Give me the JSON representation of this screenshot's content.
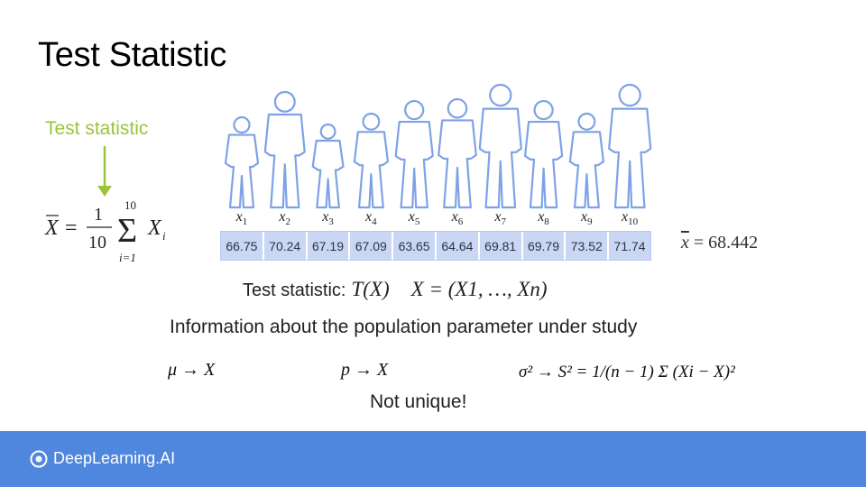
{
  "slide": {
    "title": "Test Statistic",
    "test_statistic_label": "Test statistic",
    "formula_left": {
      "lhs": "X",
      "numerator": "1",
      "denominator": "10",
      "sum_upper": "10",
      "sum_lower": "i=1",
      "term": "X",
      "term_sub": "i"
    },
    "samples": {
      "labels": [
        "x1",
        "x2",
        "x3",
        "x4",
        "x5",
        "x6",
        "x7",
        "x8",
        "x9",
        "x10"
      ],
      "label_subs": [
        "1",
        "2",
        "3",
        "4",
        "5",
        "6",
        "7",
        "8",
        "9",
        "10"
      ],
      "values": [
        "66.75",
        "70.24",
        "67.19",
        "67.09",
        "63.65",
        "64.64",
        "69.81",
        "69.79",
        "73.52",
        "71.74"
      ]
    },
    "sample_mean": "x = 68.442",
    "sample_mean_value": "= 68.442",
    "test_statistic_line": {
      "label": "Test statistic:",
      "formula": "T(X)",
      "vector": "X = (X1, …, Xn)"
    },
    "info_text": "Information about the population parameter under study",
    "estimators": {
      "mu": "μ → X",
      "p": "p → X",
      "sigma": "σ² → S² = 1/(n − 1) Σ (Xi − X)²"
    },
    "not_unique": "Not unique!",
    "brand": "DeepLearning.AI",
    "colors": {
      "accent_green": "#9dc33b",
      "table_cell": "#c9d7f5",
      "people_outline": "#7ea2e6",
      "footer": "#4f87de"
    }
  }
}
